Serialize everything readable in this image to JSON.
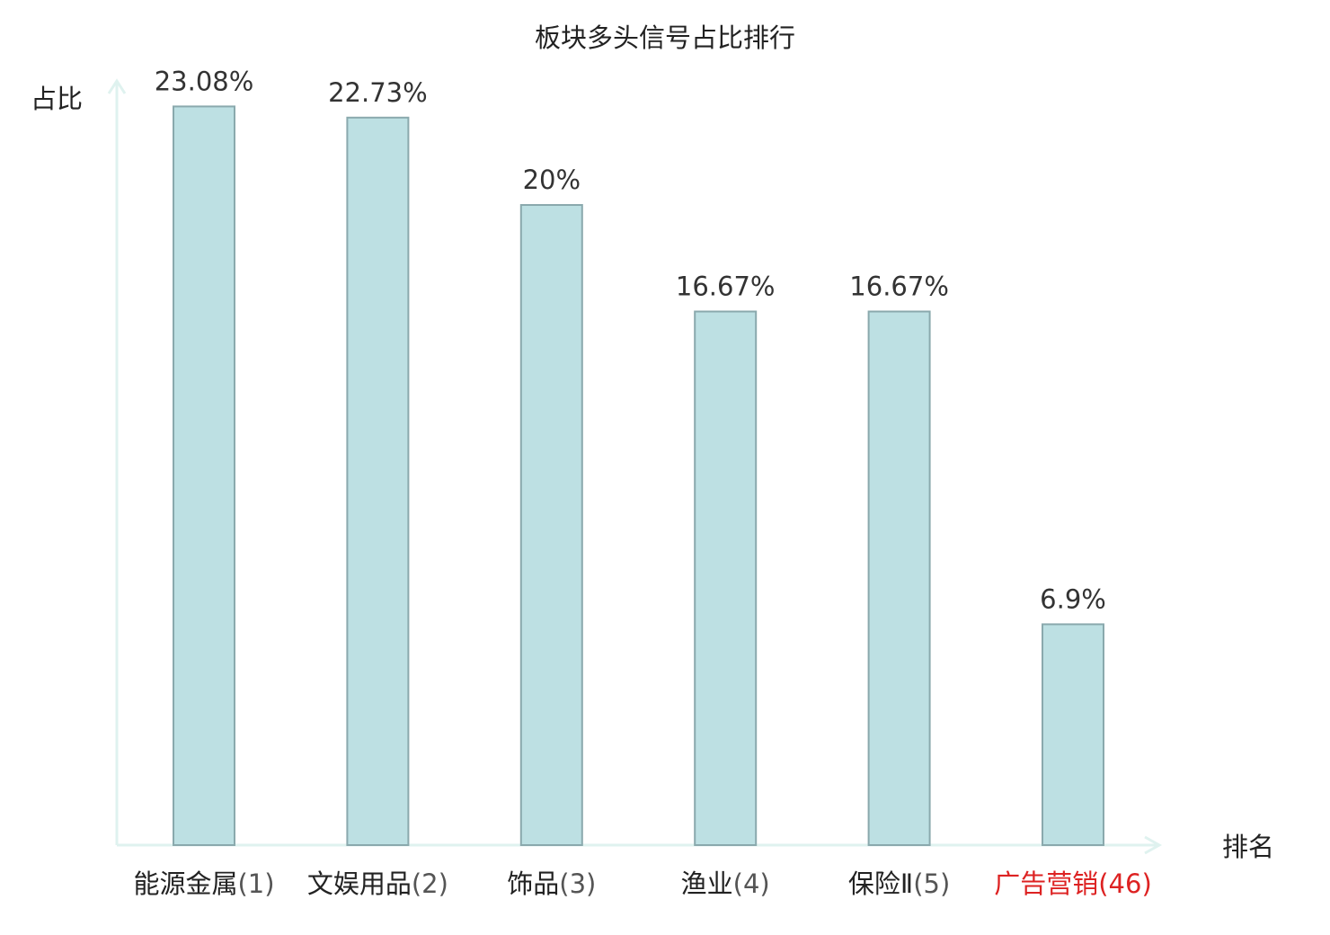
{
  "chart_data": {
    "type": "bar",
    "title": "板块多头信号占比排行",
    "ylabel": "占比",
    "xlabel": "排名",
    "categories": [
      {
        "name": "能源金属",
        "rank": "(1)",
        "highlight": false
      },
      {
        "name": "文娱用品",
        "rank": "(2)",
        "highlight": false
      },
      {
        "name": "饰品",
        "rank": "(3)",
        "highlight": false
      },
      {
        "name": "渔业",
        "rank": "(4)",
        "highlight": false
      },
      {
        "name": "保险Ⅱ",
        "rank": "(5)",
        "highlight": false
      },
      {
        "name": "广告营销",
        "rank": "(46)",
        "highlight": true
      }
    ],
    "values": [
      23.08,
      22.73,
      20,
      16.67,
      16.67,
      6.9
    ],
    "value_labels": [
      "23.08%",
      "22.73%",
      "20%",
      "16.67%",
      "16.67%",
      "6.9%"
    ],
    "ylim": [
      0,
      25
    ],
    "grid": false,
    "colors": {
      "bar_fill": "#bde0e3",
      "bar_stroke": "#8aa9ad",
      "axis": "#dff2ef",
      "name_text": "#222222",
      "rank_text": "#555555",
      "highlight": "#dd2222"
    }
  }
}
